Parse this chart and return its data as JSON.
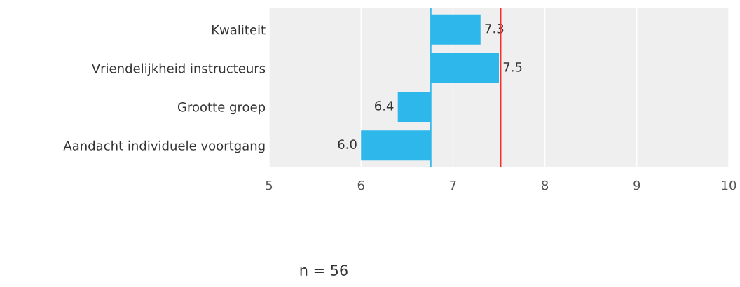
{
  "chart_data": {
    "type": "bar",
    "orientation": "horizontal",
    "categories": [
      "Kwaliteit",
      "Vriendelijkheid instructeurs",
      "Grootte groep",
      "Aandacht individuele voortgang"
    ],
    "base": [
      6.76,
      6.76,
      6.76,
      6.76
    ],
    "values": [
      0.54,
      0.74,
      -0.36,
      -0.76
    ],
    "value_labels": [
      "7.3",
      "7.5",
      "6.4",
      "6.0"
    ],
    "color": "#2db7ea",
    "xlim": [
      5,
      10
    ],
    "xticks": [
      5,
      6,
      7,
      8,
      9,
      10
    ],
    "grid": "x",
    "ref_lines": [
      {
        "axis": "x",
        "value": 6.76,
        "color": "#2db7ea"
      },
      {
        "axis": "x",
        "value": 7.52,
        "color": "#ff2a2a"
      }
    ],
    "annotations": [
      "n = 56"
    ]
  }
}
